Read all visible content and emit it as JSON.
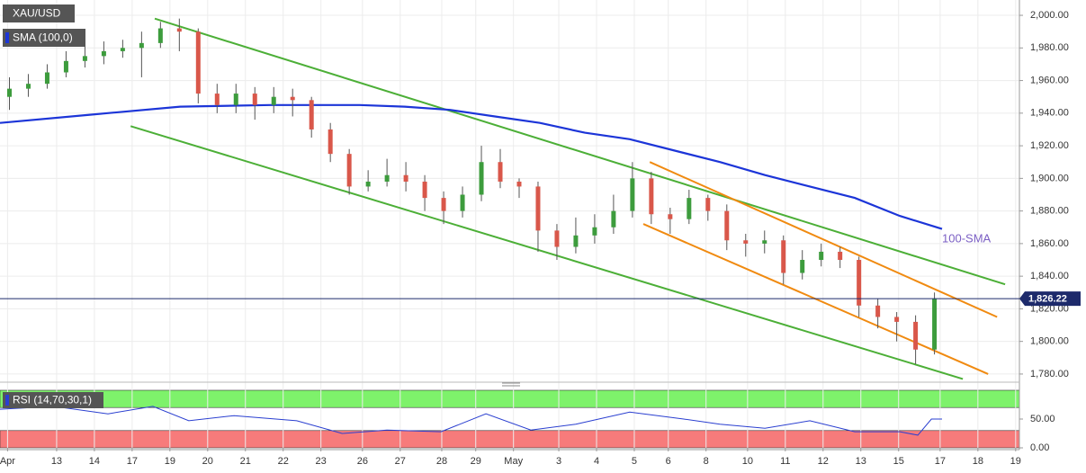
{
  "chart_data": {
    "type": "candlestick",
    "title": "XAU/USD",
    "xlim": [
      0,
      27
    ],
    "ylim": [
      1775,
      2009.4
    ],
    "yticks": [
      {
        "value": 1780,
        "label": "1,780.00"
      },
      {
        "value": 1800,
        "label": "1,800.00"
      },
      {
        "value": 1820,
        "label": "1,820.00"
      },
      {
        "value": 1840,
        "label": "1,840.00"
      },
      {
        "value": 1860,
        "label": "1,860.00"
      },
      {
        "value": 1880,
        "label": "1,880.00"
      },
      {
        "value": 1900,
        "label": "1,900.00"
      },
      {
        "value": 1920,
        "label": "1,920.00"
      },
      {
        "value": 1940,
        "label": "1,940.00"
      },
      {
        "value": 1960,
        "label": "1,960.00"
      },
      {
        "value": 1980,
        "label": "1,980.00"
      },
      {
        "value": 2000,
        "label": "2,000.00"
      }
    ],
    "xticks": [
      {
        "value": 0.2,
        "label": "Apr"
      },
      {
        "value": 1.5,
        "label": "13"
      },
      {
        "value": 2.5,
        "label": "14"
      },
      {
        "value": 3.5,
        "label": "17"
      },
      {
        "value": 4.5,
        "label": "19"
      },
      {
        "value": 5.5,
        "label": "20"
      },
      {
        "value": 6.5,
        "label": "21"
      },
      {
        "value": 7.5,
        "label": "22"
      },
      {
        "value": 8.5,
        "label": "23"
      },
      {
        "value": 9.6,
        "label": "26"
      },
      {
        "value": 10.6,
        "label": "27"
      },
      {
        "value": 11.7,
        "label": "28"
      },
      {
        "value": 12.6,
        "label": "29"
      },
      {
        "value": 13.6,
        "label": "May"
      },
      {
        "value": 14.8,
        "label": "3"
      },
      {
        "value": 15.8,
        "label": "4"
      },
      {
        "value": 16.8,
        "label": "5"
      },
      {
        "value": 17.7,
        "label": "6"
      },
      {
        "value": 18.7,
        "label": "8"
      },
      {
        "value": 19.8,
        "label": "10"
      },
      {
        "value": 20.8,
        "label": "11"
      },
      {
        "value": 21.8,
        "label": "12"
      },
      {
        "value": 22.8,
        "label": "13"
      },
      {
        "value": 23.8,
        "label": "15"
      },
      {
        "value": 24.9,
        "label": "17"
      },
      {
        "value": 25.9,
        "label": "18"
      },
      {
        "value": 26.9,
        "label": "19"
      }
    ],
    "up_color": "#3d9c3d",
    "down_color": "#d9574a",
    "candles": {
      "x": [
        0.25,
        0.75,
        1.25,
        1.75,
        2.25,
        2.75,
        3.25,
        3.75,
        4.25,
        4.75,
        5.25,
        5.75,
        6.25,
        6.75,
        7.25,
        7.75,
        8.25,
        8.75,
        9.25,
        9.75,
        10.25,
        10.75,
        11.25,
        11.75,
        12.25,
        12.75,
        13.25,
        13.75,
        14.25,
        14.75,
        15.25,
        15.75,
        16.25,
        16.75,
        17.25,
        17.75,
        18.25,
        18.75,
        19.25,
        19.75,
        20.25,
        20.75,
        21.25,
        21.75,
        22.25,
        22.75,
        23.25,
        23.75,
        24.25,
        24.75
      ],
      "open": [
        1950,
        1955,
        1958,
        1965,
        1972,
        1975,
        1978,
        1980,
        1983,
        1992,
        1990,
        1952,
        1945,
        1952,
        1945,
        1950,
        1948,
        1930,
        1915,
        1895,
        1898,
        1902,
        1898,
        1888,
        1880,
        1890,
        1910,
        1898,
        1895,
        1868,
        1858,
        1865,
        1870,
        1880,
        1900,
        1878,
        1875,
        1888,
        1880,
        1862,
        1860,
        1862,
        1842,
        1850,
        1855,
        1850,
        1822,
        1815,
        1812,
        1795
      ],
      "high": [
        1962,
        1964,
        1970,
        1978,
        1982,
        1984,
        1985,
        1990,
        1996,
        1998,
        1992,
        1958,
        1958,
        1956,
        1956,
        1955,
        1950,
        1934,
        1918,
        1905,
        1912,
        1910,
        1902,
        1892,
        1895,
        1920,
        1918,
        1900,
        1898,
        1872,
        1876,
        1878,
        1890,
        1910,
        1904,
        1882,
        1893,
        1890,
        1884,
        1866,
        1868,
        1865,
        1856,
        1860,
        1858,
        1852,
        1826,
        1818,
        1816,
        1830
      ],
      "low": [
        1942,
        1950,
        1955,
        1962,
        1968,
        1970,
        1974,
        1962,
        1980,
        1978,
        1946,
        1940,
        1940,
        1936,
        1940,
        1938,
        1925,
        1910,
        1890,
        1892,
        1895,
        1892,
        1880,
        1872,
        1876,
        1886,
        1894,
        1888,
        1855,
        1850,
        1854,
        1860,
        1866,
        1876,
        1872,
        1866,
        1872,
        1874,
        1856,
        1852,
        1854,
        1835,
        1838,
        1846,
        1845,
        1815,
        1808,
        1800,
        1786,
        1792
      ],
      "close": [
        1955,
        1958,
        1965,
        1972,
        1975,
        1978,
        1980,
        1983,
        1992,
        1990,
        1952,
        1945,
        1952,
        1945,
        1950,
        1948,
        1930,
        1915,
        1895,
        1898,
        1902,
        1898,
        1888,
        1880,
        1890,
        1910,
        1898,
        1895,
        1868,
        1858,
        1865,
        1870,
        1880,
        1900,
        1878,
        1875,
        1888,
        1880,
        1862,
        1860,
        1862,
        1842,
        1850,
        1855,
        1850,
        1822,
        1815,
        1812,
        1795,
        1826
      ]
    },
    "series": [
      {
        "name": "SMA (100,0)",
        "color": "#1c35d8",
        "x": [
          0,
          2.38,
          4.77,
          7.15,
          9.53,
          10.72,
          11.92,
          13.11,
          14.3,
          15.49,
          16.68,
          17.87,
          19.07,
          20.26,
          21.45,
          22.64,
          23.83,
          24.95
        ],
        "values": [
          1934,
          1939,
          1944,
          1945,
          1945,
          1944,
          1942,
          1938,
          1934,
          1928,
          1924,
          1917,
          1910,
          1902,
          1895,
          1888,
          1877,
          1869
        ]
      }
    ],
    "annotation": "100-SMA",
    "annotation_color": "#7b5fc4",
    "trendlines": [
      {
        "color": "#4caf37",
        "x": [
          4.1,
          26.62
        ],
        "values": [
          1998,
          1835
        ]
      },
      {
        "color": "#4caf37",
        "x": [
          3.46,
          25.5
        ],
        "values": [
          1932,
          1777
        ]
      },
      {
        "color": "#f08a10",
        "x": [
          17.21,
          26.41
        ],
        "values": [
          1910,
          1815
        ]
      },
      {
        "color": "#f08a10",
        "x": [
          17.04,
          26.17
        ],
        "values": [
          1872,
          1780
        ]
      }
    ],
    "current_price": {
      "value": 1826.22,
      "label": "1,826.22"
    },
    "rsi": {
      "name": "RSI (14,70,30,1)",
      "color": "#2a3fd0",
      "x": [
        0,
        1.43,
        2.86,
        4.05,
        5.0,
        6.2,
        7.86,
        9.06,
        10.25,
        11.68,
        12.87,
        14.06,
        15.25,
        16.68,
        18.11,
        19.07,
        20.26,
        21.45,
        22.64,
        23.83,
        24.31,
        24.67,
        24.95
      ],
      "values": [
        67,
        72,
        59,
        72,
        47,
        56,
        47,
        25,
        31,
        28,
        59,
        31,
        41,
        62,
        50,
        41,
        34,
        47,
        28,
        28,
        22,
        50,
        50
      ],
      "ylim": [
        0,
        100
      ],
      "yticks": [
        {
          "value": 0,
          "label": "0.00"
        },
        {
          "value": 50,
          "label": "50.00"
        }
      ],
      "overbought": 70,
      "oversold": 30
    }
  }
}
